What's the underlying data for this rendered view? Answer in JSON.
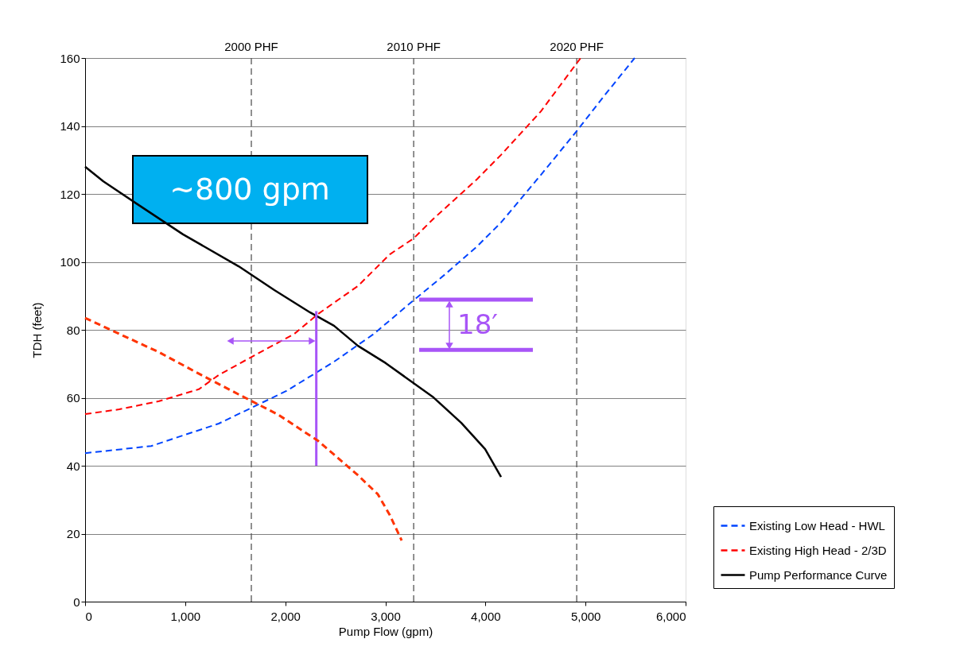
{
  "chart_data": {
    "type": "line",
    "xlabel": "Pump Flow  (gpm)",
    "ylabel": "TDH (feet)",
    "xlim": [
      0,
      6000
    ],
    "xticks": [
      0,
      {
        "value": 1000,
        "label": "1,000"
      },
      {
        "value": 2000,
        "label": "2,000"
      },
      {
        "value": 3000,
        "label": "3,000"
      },
      {
        "value": 4000,
        "label": "4,000"
      },
      {
        "value": 5000,
        "label": "5,000"
      },
      {
        "value": 6000,
        "label": "6,000"
      }
    ],
    "ylim": [
      0,
      160
    ],
    "yticks": [
      0,
      20,
      40,
      60,
      80,
      100,
      120,
      140,
      160
    ],
    "grid": "y",
    "legend": "right",
    "marker": "none",
    "series": [
      {
        "name": "Existing Low Head - HWL",
        "color": "#0044ff",
        "line_style": "dashed",
        "x": [
          0,
          660,
          1335,
          2011,
          2487,
          2885,
          3282,
          3600,
          3918,
          4156,
          4554,
          4912,
          5190,
          5491
        ],
        "values": [
          43.7,
          45.8,
          52.4,
          62,
          70.6,
          78.8,
          88.7,
          96.4,
          104.6,
          111.6,
          125.6,
          138.5,
          149,
          160
        ]
      },
      {
        "name": "Existing High Head - 2/3D",
        "color": "#ff0000",
        "line_style": "dashed",
        "x": [
          0,
          342,
          739,
          1136,
          1335,
          1693,
          2090,
          2329,
          2726,
          3044,
          3282,
          3481,
          3918,
          4156,
          4554,
          4951
        ],
        "values": [
          55.2,
          56.6,
          59,
          62.5,
          66.7,
          72.5,
          78.8,
          84.7,
          92.9,
          102.2,
          106.9,
          112.7,
          124.4,
          131.5,
          144.3,
          160
        ]
      },
      {
        "name": "Pump Performance Curve",
        "color": "#000000",
        "line_style": "solid",
        "x": [
          0,
          183,
          501,
          978,
          1534,
          1891,
          2249,
          2487,
          2726,
          3004,
          3481,
          3759,
          3997,
          4156
        ],
        "values": [
          128,
          123.7,
          117.4,
          108.1,
          98.7,
          91.7,
          85.1,
          81.2,
          75.3,
          70.2,
          60.1,
          52.6,
          44.9,
          36.7
        ]
      },
      {
        "color": "#a855f7",
        "line_style": "solid",
        "x": [
          2310,
          2310
        ],
        "values": [
          40,
          85.5
        ]
      },
      {
        "color": "#a855f7",
        "line_style": "solid",
        "x": [
          3338,
          4474
        ],
        "values": [
          88.9,
          88.9
        ]
      },
      {
        "color": "#a855f7",
        "line_style": "solid",
        "x": [
          3338,
          4474
        ],
        "values": [
          74.1,
          74.1
        ]
      },
      {
        "color": "#ff3300",
        "line_style": "dashed",
        "x": [
          0,
          342,
          739,
          1136,
          1534,
          1931,
          2329,
          2487,
          2726,
          2925,
          3044,
          3163
        ],
        "values": [
          83.5,
          78.8,
          73.4,
          67.1,
          61,
          55,
          47.3,
          43.3,
          37.2,
          31.6,
          25.5,
          18
        ]
      }
    ],
    "ref_lines": [
      {
        "axis": "x",
        "value": 1661,
        "label": "2000 PHF",
        "color": "#555555",
        "line_style": "dashed"
      },
      {
        "axis": "x",
        "value": 3283,
        "label": "2010 PHF",
        "color": "#555555",
        "line_style": "dashed"
      },
      {
        "axis": "x",
        "value": 4912,
        "label": "2020 PHF",
        "color": "#555555",
        "line_style": "dashed"
      }
    ],
    "annotations": [
      "∼800 gpm",
      "18′"
    ]
  }
}
